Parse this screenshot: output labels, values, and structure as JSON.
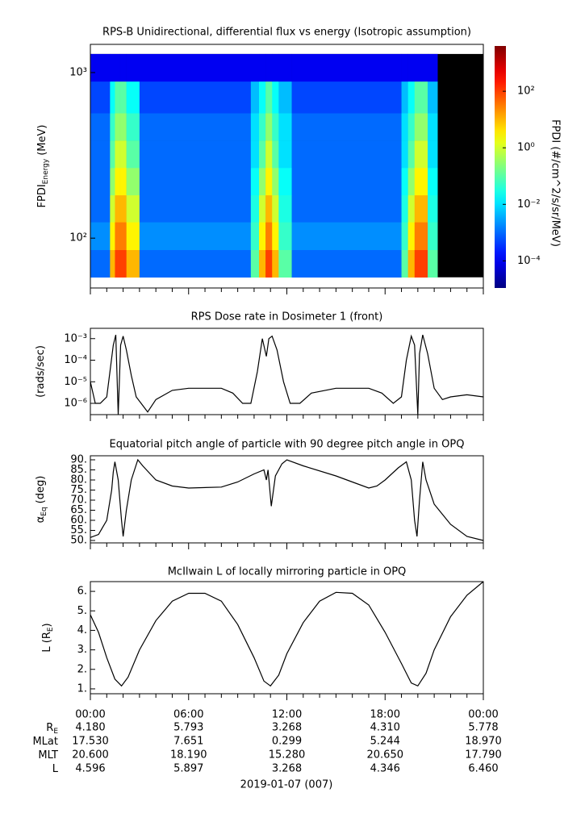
{
  "chart_data": [
    {
      "type": "heatmap",
      "title": "RPS-B  Unidirectional, differential flux vs energy (Isotropic assumption)",
      "ylabel": "FPDI",
      "ylabel_sub": "Energy",
      "ylabel_rest": "(MeV)",
      "zlabel": "FPDI (#/cm^2/s/sr/MeV)",
      "colormap": "jet",
      "log_y": true,
      "log_z": true,
      "ylim": [
        50,
        1480
      ],
      "yticks": [
        {
          "value": 100,
          "label": "10²"
        },
        {
          "value": 1000,
          "label": "10³"
        }
      ],
      "zlim": [
        1.1e-05,
        4000
      ],
      "zticks": [
        {
          "value": 0.0001,
          "label": "10⁻⁴"
        },
        {
          "value": 0.01,
          "label": "10⁻²"
        },
        {
          "value": 1,
          "label": "10⁰"
        },
        {
          "value": 100,
          "label": "10²"
        }
      ],
      "x_bins": [
        0,
        1.2,
        1.5,
        1.8,
        2.2,
        3,
        9.8,
        10.3,
        10.7,
        11.1,
        11.5,
        12.3,
        19,
        19.4,
        19.8,
        20.2,
        20.6,
        21.2,
        24
      ],
      "y_bins": [
        58,
        85,
        125,
        182,
        266,
        389,
        569,
        885,
        1295
      ],
      "values": [
        [
          0.001,
          10,
          100,
          100,
          10,
          0.001,
          0.1,
          10,
          100,
          10,
          0.1,
          0.001,
          0.1,
          10,
          100,
          100,
          0.1,
          null
        ],
        [
          0.002,
          3,
          30,
          30,
          3,
          0.002,
          0.05,
          3,
          30,
          3,
          0.05,
          0.002,
          0.05,
          3,
          30,
          30,
          0.05,
          null
        ],
        [
          0.001,
          1,
          10,
          10,
          1,
          0.001,
          0.03,
          1,
          10,
          1,
          0.03,
          0.001,
          0.03,
          1,
          10,
          10,
          0.03,
          null
        ],
        [
          0.001,
          0.3,
          3,
          3,
          0.3,
          0.001,
          0.02,
          0.3,
          3,
          0.3,
          0.02,
          0.001,
          0.02,
          0.3,
          3,
          3,
          0.02,
          null
        ],
        [
          0.001,
          0.1,
          1,
          1,
          0.1,
          0.001,
          0.01,
          0.1,
          1,
          0.1,
          0.01,
          0.001,
          0.01,
          0.1,
          1,
          1,
          0.01,
          null
        ],
        [
          0.001,
          0.05,
          0.3,
          0.3,
          0.05,
          0.001,
          0.01,
          0.05,
          0.3,
          0.05,
          0.01,
          0.001,
          0.01,
          0.05,
          0.3,
          0.3,
          0.01,
          null
        ],
        [
          0.0005,
          0.02,
          0.1,
          0.1,
          0.02,
          0.0005,
          0.005,
          0.02,
          0.1,
          0.02,
          0.005,
          0.0005,
          0.005,
          0.02,
          0.1,
          0.1,
          0.005,
          null
        ],
        [
          0.0001,
          0.0001,
          0.0001,
          0.0001,
          0.0001,
          0.0001,
          0.0001,
          0.0001,
          0.0001,
          0.0001,
          0.0001,
          0.0001,
          0.0001,
          0.0001,
          0.0001,
          0.0001,
          0.0001,
          null
        ]
      ]
    },
    {
      "type": "line",
      "title": "RPS  Dose rate in Dosimeter 1 (front)",
      "ylabel": "(rads/sec)",
      "color": "#000000",
      "log_y": true,
      "ylim": [
        3e-07,
        0.003
      ],
      "yticks": [
        {
          "value": 1e-06,
          "label": "10⁻⁶"
        },
        {
          "value": 1e-05,
          "label": "10⁻⁵"
        },
        {
          "value": 0.0001,
          "label": "10⁻⁴"
        },
        {
          "value": 0.001,
          "label": "10⁻³"
        }
      ],
      "x": [
        0,
        0.3,
        0.6,
        1.0,
        1.2,
        1.4,
        1.55,
        1.7,
        1.85,
        2.0,
        2.2,
        2.5,
        2.8,
        3.1,
        3.5,
        4,
        5,
        6,
        7,
        8,
        8.7,
        9.3,
        9.8,
        10.2,
        10.5,
        10.75,
        10.9,
        11.1,
        11.4,
        11.8,
        12.2,
        12.8,
        13.5,
        15,
        17,
        17.8,
        18.5,
        19,
        19.3,
        19.6,
        19.8,
        20.0,
        20.1,
        20.3,
        20.6,
        21,
        21.5,
        22,
        23,
        24
      ],
      "values": [
        1e-05,
        1e-06,
        1e-06,
        2e-06,
        3e-05,
        0.0005,
        0.0015,
        3e-07,
        0.0005,
        0.0013,
        0.0003,
        2e-05,
        2e-06,
        1e-06,
        4e-07,
        1.5e-06,
        4e-06,
        5e-06,
        5e-06,
        5e-06,
        3e-06,
        1e-06,
        1e-06,
        3e-05,
        0.001,
        0.00015,
        0.001,
        0.0013,
        0.0003,
        1e-05,
        1e-06,
        1e-06,
        3e-06,
        5e-06,
        5e-06,
        3e-06,
        1e-06,
        2e-06,
        0.0001,
        0.0013,
        0.0005,
        3e-07,
        0.0002,
        0.0015,
        0.0002,
        5e-06,
        1.5e-06,
        2e-06,
        2.5e-06,
        2e-06
      ]
    },
    {
      "type": "line",
      "title": "Equatorial pitch angle of particle with 90 degree pitch angle in OPQ",
      "ylabel": "α",
      "ylabel_sub": "Eq",
      "ylabel_rest": "(deg)",
      "color": "#000000",
      "log_y": false,
      "ylim": [
        48.8,
        92
      ],
      "yticks": [
        {
          "value": 50,
          "label": "50."
        },
        {
          "value": 55,
          "label": "55."
        },
        {
          "value": 60,
          "label": "60."
        },
        {
          "value": 65,
          "label": "65."
        },
        {
          "value": 70,
          "label": "70."
        },
        {
          "value": 75,
          "label": "75."
        },
        {
          "value": 80,
          "label": "80."
        },
        {
          "value": 85,
          "label": "85."
        },
        {
          "value": 90,
          "label": "90."
        }
      ],
      "x": [
        0,
        0.5,
        1,
        1.3,
        1.4,
        1.5,
        1.7,
        1.9,
        2.0,
        2.2,
        2.5,
        2.9,
        3.2,
        4,
        5,
        6,
        8,
        9,
        10,
        10.6,
        10.75,
        10.85,
        11.05,
        11.3,
        11.7,
        12,
        13,
        15,
        16,
        17,
        17.5,
        18,
        18.8,
        19.3,
        19.6,
        19.8,
        19.95,
        20.1,
        20.3,
        20.5,
        21,
        22,
        23,
        24
      ],
      "values": [
        51.5,
        53,
        60,
        75,
        84,
        89,
        80,
        60,
        52,
        65,
        80,
        90,
        87,
        80,
        77,
        76,
        76.5,
        79,
        83,
        85,
        80,
        85,
        67,
        82,
        88,
        90,
        87,
        82,
        79,
        76,
        77,
        80,
        86,
        89,
        80,
        60,
        52,
        70,
        89,
        80,
        68,
        58,
        52,
        50
      ]
    },
    {
      "type": "line",
      "title": "McIlwain L of locally mirroring particle in OPQ",
      "ylabel": "L (R",
      "ylabel_sub": "E",
      "ylabel_rest": ")",
      "color": "#000000",
      "log_y": false,
      "ylim": [
        0.75,
        6.5
      ],
      "yticks": [
        {
          "value": 1,
          "label": "1."
        },
        {
          "value": 2,
          "label": "2."
        },
        {
          "value": 3,
          "label": "3."
        },
        {
          "value": 4,
          "label": "4."
        },
        {
          "value": 5,
          "label": "5."
        },
        {
          "value": 6,
          "label": "6."
        }
      ],
      "x": [
        0,
        0.5,
        1,
        1.5,
        1.9,
        2.3,
        3,
        4,
        5,
        6,
        7,
        8,
        9,
        10,
        10.6,
        11,
        11.5,
        12,
        13,
        14,
        15,
        16,
        17,
        18,
        19,
        19.6,
        20,
        20.5,
        21,
        22,
        23,
        24
      ],
      "values": [
        4.8,
        3.9,
        2.6,
        1.5,
        1.15,
        1.6,
        3,
        4.5,
        5.5,
        5.9,
        5.9,
        5.5,
        4.3,
        2.6,
        1.4,
        1.15,
        1.7,
        2.8,
        4.4,
        5.5,
        5.95,
        5.9,
        5.3,
        3.9,
        2.3,
        1.3,
        1.15,
        1.8,
        3,
        4.7,
        5.8,
        6.5
      ]
    }
  ],
  "time_axis": {
    "xlim": [
      0,
      24
    ],
    "xticks": [
      {
        "value": 0,
        "label": "00:00"
      },
      {
        "value": 6,
        "label": "06:00"
      },
      {
        "value": 12,
        "label": "12:00"
      },
      {
        "value": 18,
        "label": "18:00"
      },
      {
        "value": 24,
        "label": "00:00"
      }
    ],
    "minor_xticks": [
      1,
      2,
      3,
      4,
      5,
      7,
      8,
      9,
      10,
      11,
      13,
      14,
      15,
      16,
      17,
      19,
      20,
      21,
      22,
      23
    ]
  },
  "ephemeris": {
    "rows": [
      {
        "label": "R",
        "label_sub": "E",
        "values": [
          "4.180",
          "5.793",
          "3.268",
          "4.310",
          "5.778"
        ]
      },
      {
        "label": "MLat",
        "values": [
          "17.530",
          "7.651",
          "0.299",
          "5.244",
          "18.970"
        ]
      },
      {
        "label": "MLT",
        "values": [
          "20.600",
          "18.190",
          "15.280",
          "20.650",
          "17.790"
        ]
      },
      {
        "label": "L",
        "values": [
          "4.596",
          "5.897",
          "3.268",
          "4.346",
          "6.460"
        ]
      }
    ]
  },
  "date": "2019-01-07 (007)"
}
